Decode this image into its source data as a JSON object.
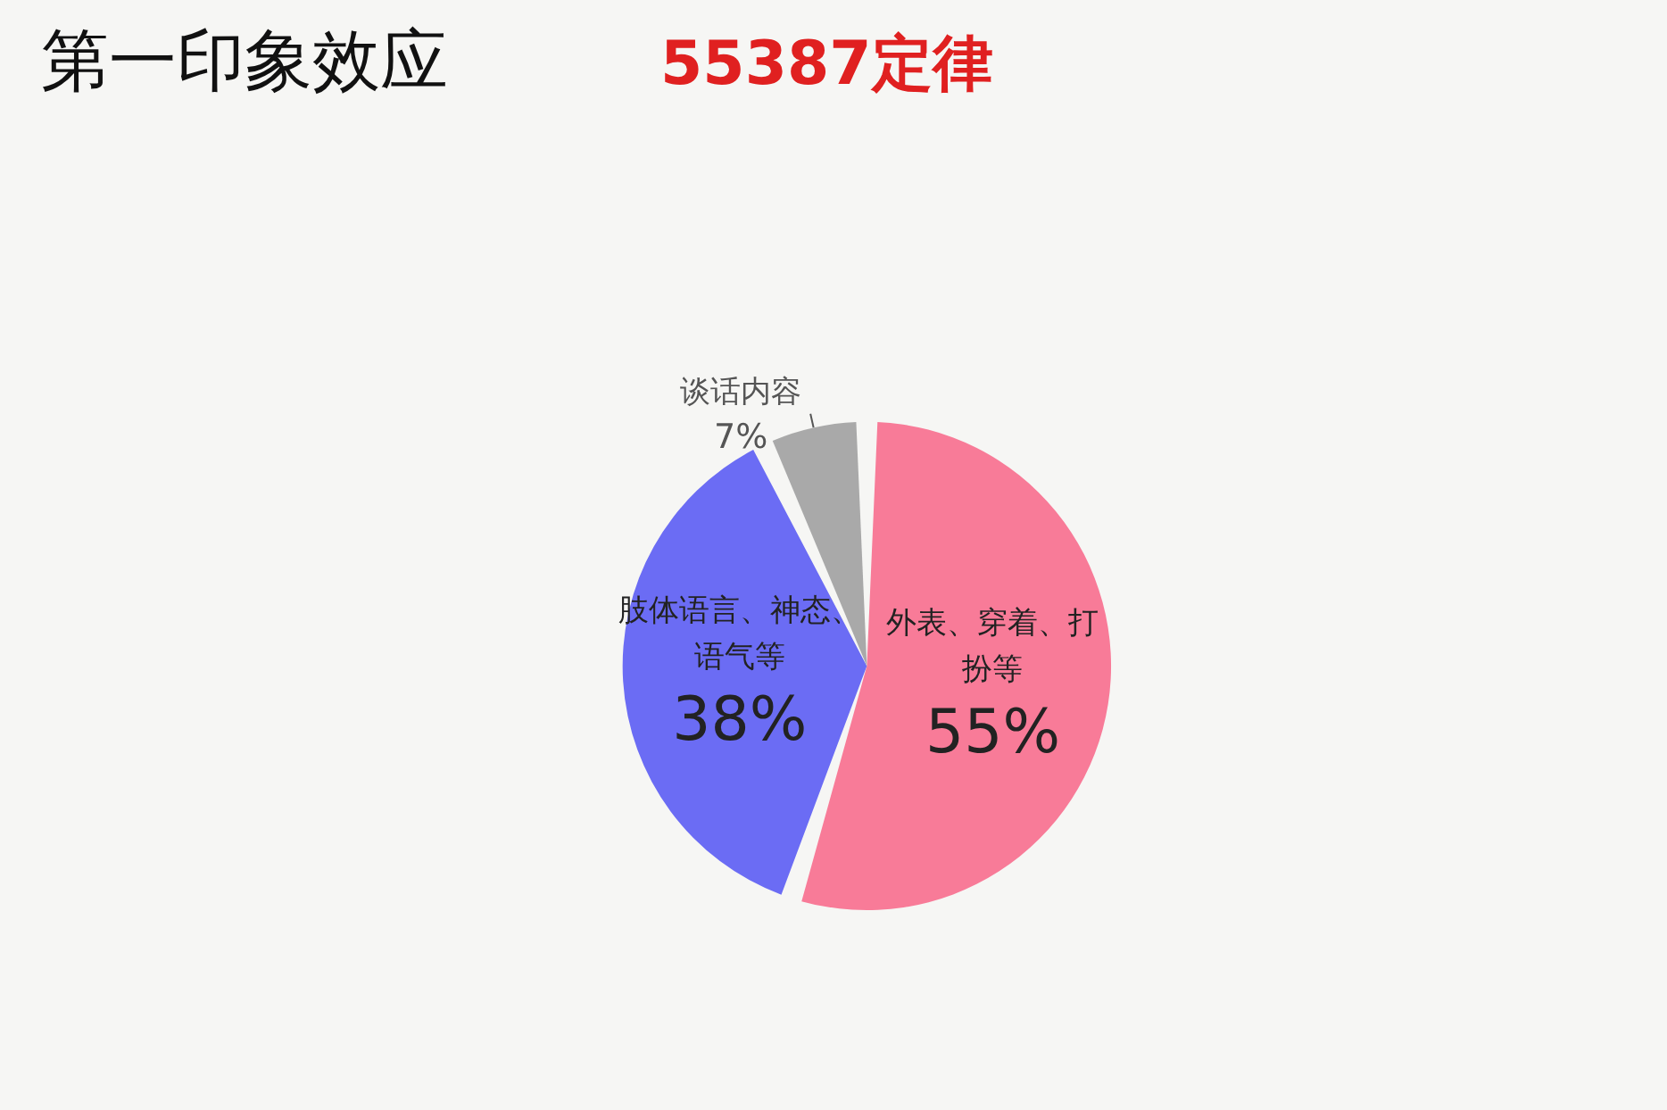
{
  "chart_data": {
    "type": "pie",
    "title": "第一印象效应",
    "subtitle": "55387定律",
    "categories": [
      "外表、穿着、打扮等",
      "肢体语言、神态、语气等",
      "谈话内容"
    ],
    "values": [
      55,
      38,
      7
    ],
    "colors": [
      "#f87b98",
      "#6b6cf4",
      "#a9a9a9"
    ],
    "value_labels": [
      "55%",
      "38%",
      "7%"
    ],
    "legend": false
  }
}
